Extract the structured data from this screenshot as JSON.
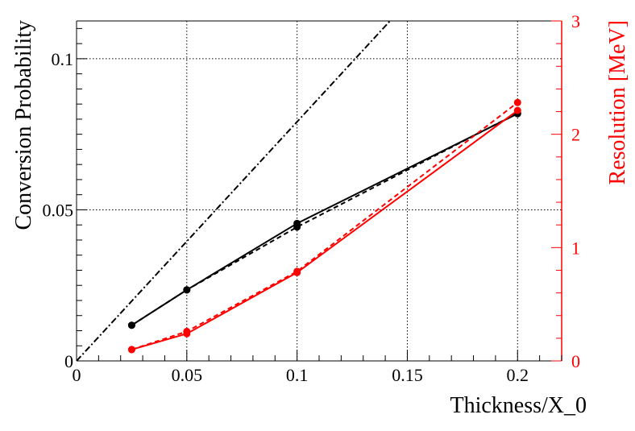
{
  "chart_data": {
    "type": "line",
    "title": "",
    "xlabel": "Thickness/X_0",
    "ylabel_left": "Conversion Probability",
    "ylabel_right": "Resolution [MeV]",
    "xlim": [
      0,
      0.22
    ],
    "ylim_left": [
      0,
      0.1125
    ],
    "ylim_right": [
      0,
      3
    ],
    "grid": true,
    "x_ticks": [
      {
        "value": 0,
        "label": "0"
      },
      {
        "value": 0.05,
        "label": "0.05"
      },
      {
        "value": 0.1,
        "label": "0.1"
      },
      {
        "value": 0.15,
        "label": "0.15"
      },
      {
        "value": 0.2,
        "label": "0.2"
      }
    ],
    "y_left_ticks": [
      {
        "value": 0,
        "label": "0"
      },
      {
        "value": 0.05,
        "label": "0.05"
      },
      {
        "value": 0.1,
        "label": "0.1"
      }
    ],
    "y_right_ticks": [
      {
        "value": 0,
        "label": "0"
      },
      {
        "value": 1,
        "label": "1"
      },
      {
        "value": 2,
        "label": "2"
      },
      {
        "value": 3,
        "label": "3"
      }
    ],
    "series": [
      {
        "axis": "left",
        "color": "#000000",
        "style": "solid",
        "markers": true,
        "points": [
          [
            0.025,
            0.0118
          ],
          [
            0.05,
            0.0235
          ],
          [
            0.1,
            0.0455
          ],
          [
            0.2,
            0.0818
          ]
        ]
      },
      {
        "axis": "left",
        "color": "#000000",
        "style": "dashed",
        "markers": true,
        "points": [
          [
            0.025,
            0.0118
          ],
          [
            0.05,
            0.0235
          ],
          [
            0.1,
            0.0443
          ],
          [
            0.2,
            0.082
          ]
        ]
      },
      {
        "axis": "left",
        "color": "#000000",
        "style": "dashdot",
        "markers": false,
        "points": [
          [
            0,
            0
          ],
          [
            0.15,
            0.1187
          ]
        ]
      },
      {
        "axis": "right",
        "color": "#ff0000",
        "style": "solid",
        "markers": true,
        "points": [
          [
            0.025,
            0.1
          ],
          [
            0.05,
            0.24
          ],
          [
            0.1,
            0.78
          ],
          [
            0.2,
            2.21
          ]
        ]
      },
      {
        "axis": "right",
        "color": "#ff0000",
        "style": "dashed",
        "markers": true,
        "points": [
          [
            0.025,
            0.1
          ],
          [
            0.05,
            0.26
          ],
          [
            0.1,
            0.79
          ],
          [
            0.2,
            2.28
          ]
        ]
      }
    ]
  }
}
